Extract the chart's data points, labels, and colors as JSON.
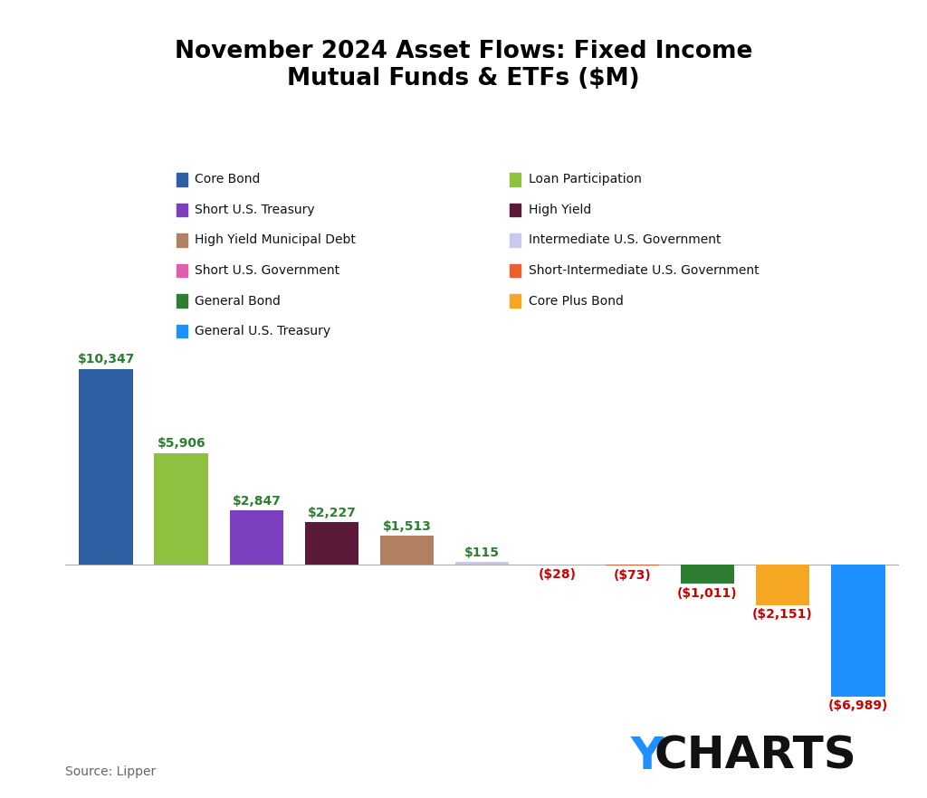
{
  "title": "November 2024 Asset Flows: Fixed Income\nMutual Funds & ETFs ($M)",
  "categories": [
    "Core Bond",
    "Loan Participation",
    "Short U.S. Treasury",
    "High Yield",
    "High Yield Municipal Debt",
    "Intermediate U.S. Government",
    "Short U.S. Government",
    "Short-Intermediate U.S. Government",
    "General Bond",
    "Core Plus Bond",
    "General U.S. Treasury"
  ],
  "values": [
    10347,
    5906,
    2847,
    2227,
    1513,
    115,
    -28,
    -73,
    -1011,
    -2151,
    -6989
  ],
  "colors": [
    "#2E5FA3",
    "#8DC13F",
    "#7B3FBF",
    "#5C1A3A",
    "#B08060",
    "#C8C8F0",
    "#E05DB0",
    "#E8602C",
    "#2E7D32",
    "#F5A623",
    "#1E90FF"
  ],
  "label_text_pos": [
    "$10,347",
    "$5,906",
    "$2,847",
    "$2,227",
    "$1,513",
    "$115"
  ],
  "label_text_neg": [
    "($28)",
    "($73)",
    "($1,011)",
    "($2,151)",
    "($6,989)"
  ],
  "source": "Source: Lipper",
  "legend_left": [
    {
      "label": "Core Bond",
      "color": "#2E5FA3"
    },
    {
      "label": "Short U.S. Treasury",
      "color": "#7B3FBF"
    },
    {
      "label": "High Yield Municipal Debt",
      "color": "#B08060"
    },
    {
      "label": "Short U.S. Government",
      "color": "#E05DB0"
    },
    {
      "label": "General Bond",
      "color": "#2E7D32"
    },
    {
      "label": "General U.S. Treasury",
      "color": "#1E90FF"
    }
  ],
  "legend_right": [
    {
      "label": "Loan Participation",
      "color": "#8DC13F"
    },
    {
      "label": "High Yield",
      "color": "#5C1A3A"
    },
    {
      "label": "Intermediate U.S. Government",
      "color": "#C8C8F0"
    },
    {
      "label": "Short-Intermediate U.S. Government",
      "color": "#E8602C"
    },
    {
      "label": "Core Plus Bond",
      "color": "#F5A623"
    }
  ],
  "ylim": [
    -9000,
    13000
  ],
  "positive_label_color": "#2E7D32",
  "negative_label_color": "#CC0000",
  "background_color": "#FFFFFF",
  "ycharts_y_color": "#1E90FF",
  "ycharts_charts_color": "#111111"
}
